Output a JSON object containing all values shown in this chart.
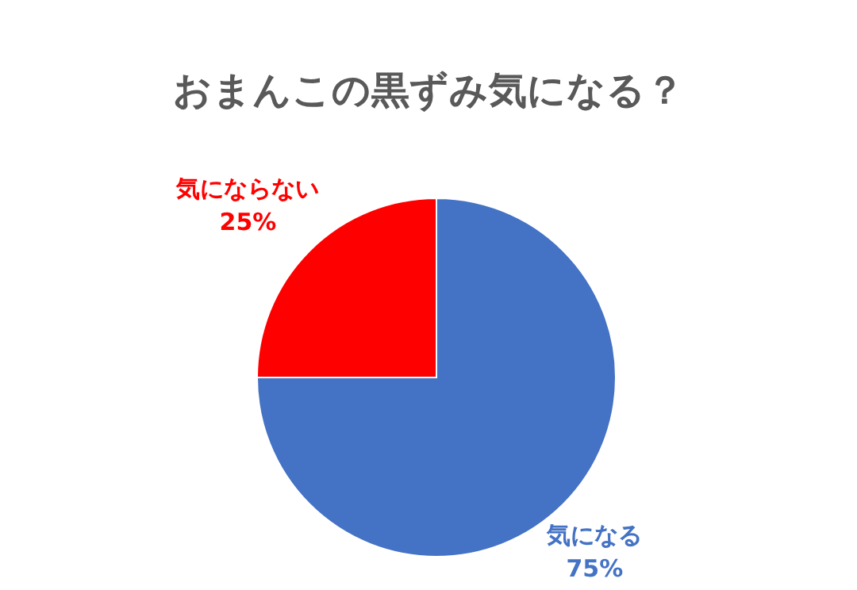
{
  "chart_data": {
    "type": "pie",
    "title": "おまんこの黒ずみ気になる？",
    "categories": [
      "気になる",
      "気にならない"
    ],
    "values": [
      75,
      25
    ],
    "colors": [
      "#4472c4",
      "#ff0000"
    ],
    "value_labels": [
      "75%",
      "25%"
    ]
  }
}
